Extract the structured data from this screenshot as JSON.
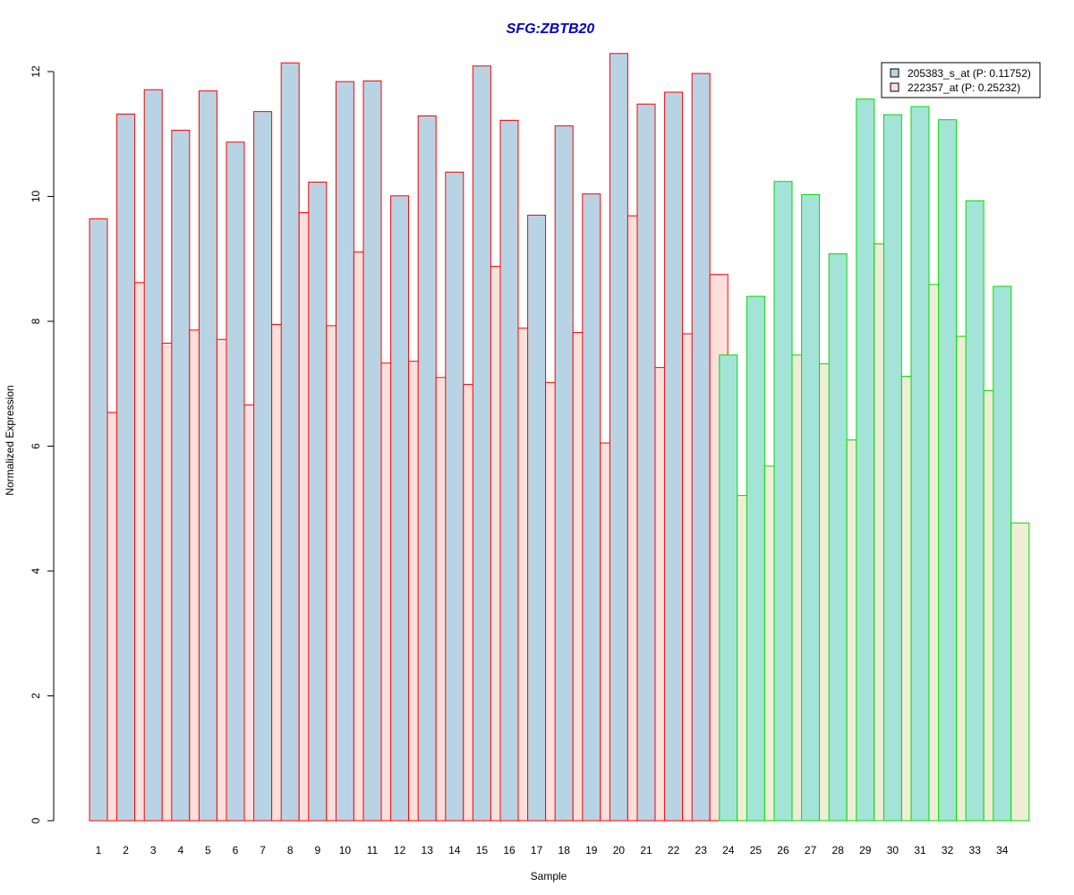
{
  "chart_data": {
    "type": "bar",
    "title": "SFG:ZBTB20",
    "xlabel": "Sample",
    "ylabel": "Normalized Expression",
    "ylim": [
      0,
      12.3
    ],
    "yticks": [
      "0",
      "2",
      "4",
      "6",
      "8",
      "10",
      "12"
    ],
    "grid": false,
    "legend_position": "top-right",
    "categories": [
      "1",
      "2",
      "3",
      "4",
      "5",
      "6",
      "7",
      "8",
      "9",
      "10",
      "11",
      "12",
      "13",
      "14",
      "15",
      "16",
      "17",
      "18",
      "19",
      "20",
      "21",
      "22",
      "23",
      "24",
      "25",
      "26",
      "27",
      "28",
      "29",
      "30",
      "31",
      "32",
      "33",
      "34"
    ],
    "group_border_colors": {
      "first_group": "#ff0000",
      "second_group": "#00dd00"
    },
    "first_group_count": 23,
    "series": [
      {
        "name": "205383_s_at (P: 0.11752)",
        "fill_first_group": "#b8d4e4",
        "fill_second_group": "#a4e4d8",
        "values": [
          9.64,
          11.32,
          11.71,
          11.06,
          11.69,
          10.87,
          11.36,
          12.14,
          10.23,
          11.84,
          11.85,
          10.01,
          11.29,
          10.39,
          12.09,
          11.22,
          9.7,
          11.13,
          10.04,
          12.29,
          11.48,
          11.67,
          11.97,
          7.46,
          8.4,
          10.24,
          10.03,
          9.08,
          11.56,
          11.31,
          11.44,
          11.23,
          9.93,
          8.56
        ]
      },
      {
        "name": "222357_at (P: 0.25232)",
        "fill_first_group": "#fde0dc",
        "fill_second_group": "#f0edd6",
        "values": [
          6.54,
          8.62,
          7.65,
          7.86,
          7.71,
          6.66,
          7.95,
          9.74,
          7.93,
          9.11,
          7.33,
          7.36,
          7.1,
          6.99,
          8.88,
          7.89,
          7.02,
          7.82,
          6.05,
          9.69,
          7.26,
          7.8,
          8.75,
          5.21,
          5.68,
          7.46,
          7.32,
          6.1,
          9.24,
          7.12,
          8.59,
          7.76,
          6.89,
          4.77
        ]
      }
    ]
  },
  "colors": {
    "title": "#0000cc",
    "axis": "#000000"
  }
}
